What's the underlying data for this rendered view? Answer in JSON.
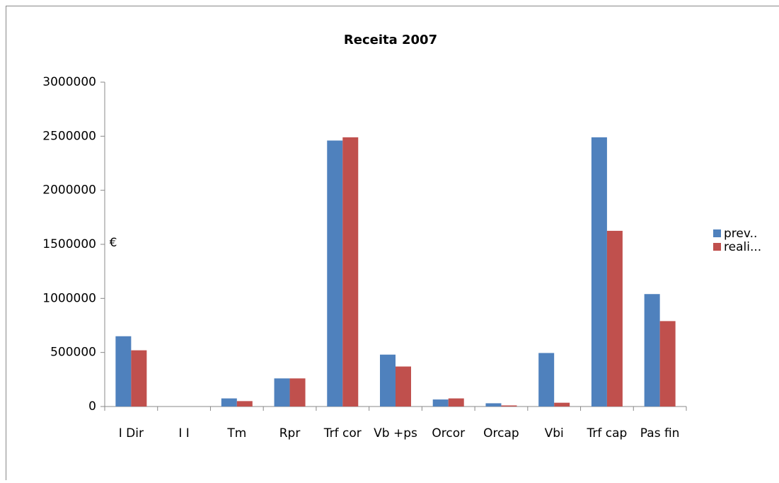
{
  "chart_data": {
    "type": "bar",
    "title": "Receita 2007",
    "y_label": "€",
    "categories": [
      "I Dir",
      "I I",
      "Tm",
      "Rpr",
      "Trf cor",
      "Vb +ps",
      "Orcor",
      "Orcap",
      "Vbi",
      "Trf cap",
      "Pas fin"
    ],
    "series": [
      {
        "name": "prev..",
        "color": "#4f81bd",
        "values": [
          650000,
          0,
          75000,
          260000,
          2460000,
          480000,
          65000,
          30000,
          495000,
          2490000,
          1040000
        ]
      },
      {
        "name": "reali...",
        "color": "#c0504d",
        "values": [
          520000,
          0,
          50000,
          260000,
          2490000,
          370000,
          75000,
          10000,
          35000,
          1625000,
          790000
        ]
      }
    ],
    "ylim": [
      0,
      3000000
    ],
    "yticks": [
      0,
      500000,
      1000000,
      1500000,
      2000000,
      2500000,
      3000000
    ],
    "grid": false,
    "legend": "right"
  }
}
